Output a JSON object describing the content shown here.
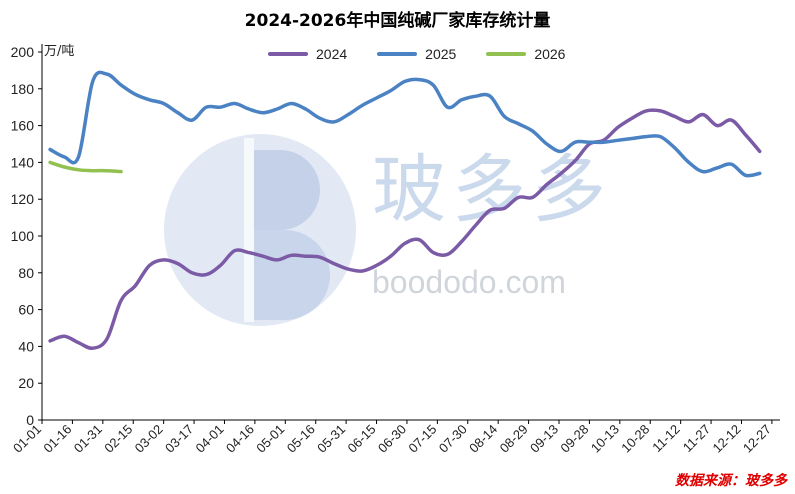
{
  "title": "2024-2026年中国纯碱厂家库存统计量",
  "unit_label": "万/吨",
  "source": "数据来源：玻多多",
  "watermark": {
    "cn": "玻多多",
    "en": "boododo.com"
  },
  "colors": {
    "s2024": "#7b5aa6",
    "s2025": "#4a82c3",
    "s2026": "#92c051",
    "axis": "#000000",
    "source": "#e00000"
  },
  "chart_data": {
    "type": "line",
    "title": "2024-2026年中国纯碱厂家库存统计量",
    "ylabel": "万/吨",
    "ylim": [
      0,
      200
    ],
    "yticks": [
      0,
      20,
      40,
      60,
      80,
      100,
      120,
      140,
      160,
      180,
      200
    ],
    "x_categories": [
      "01-01",
      "01-16",
      "01-31",
      "02-15",
      "03-02",
      "03-17",
      "04-01",
      "04-16",
      "05-01",
      "05-16",
      "05-31",
      "06-15",
      "06-30",
      "07-15",
      "07-30",
      "08-14",
      "08-29",
      "09-13",
      "09-28",
      "10-13",
      "10-28",
      "11-12",
      "11-27",
      "12-12",
      "12-27"
    ],
    "grid": false,
    "legend_position": "top-center",
    "series": [
      {
        "name": "2024",
        "x": [
          4,
          11,
          18,
          25,
          32,
          39,
          46,
          53,
          60,
          67,
          74,
          81,
          88,
          95,
          102,
          109,
          116,
          123,
          130,
          137,
          144,
          151,
          158,
          165,
          172,
          179,
          186,
          193,
          200,
          207,
          214,
          221,
          228,
          235,
          242,
          249,
          256,
          263,
          270,
          277,
          284,
          291,
          298,
          305,
          312,
          319,
          326,
          333,
          340,
          347,
          354
        ],
        "values": [
          43,
          45.5,
          42,
          39,
          44,
          65,
          73,
          84,
          87,
          85,
          80,
          79,
          84,
          92,
          91,
          89,
          87,
          89.5,
          89,
          88.5,
          85,
          82,
          81,
          84,
          89,
          96,
          98,
          91,
          90,
          97,
          106,
          114,
          115,
          121,
          121,
          128,
          134,
          141,
          150,
          152,
          159,
          164,
          168,
          168,
          165,
          162,
          166,
          160,
          163,
          155,
          146
        ]
      },
      {
        "name": "2025",
        "x": [
          4,
          11,
          18,
          25,
          32,
          39,
          46,
          53,
          60,
          67,
          74,
          81,
          88,
          95,
          102,
          109,
          116,
          123,
          130,
          137,
          144,
          151,
          158,
          165,
          172,
          179,
          186,
          193,
          200,
          207,
          214,
          221,
          228,
          235,
          242,
          249,
          256,
          263,
          270,
          277,
          284,
          291,
          298,
          305,
          312,
          319,
          326,
          333,
          340,
          347,
          354
        ],
        "values": [
          147,
          143,
          143,
          184,
          188,
          182,
          177,
          174,
          172,
          167,
          163,
          170,
          170,
          172,
          169,
          167,
          169,
          172,
          169,
          164,
          162,
          166,
          171,
          175,
          179,
          184,
          185,
          182,
          170,
          174,
          176,
          176,
          165,
          161,
          157,
          150,
          146,
          151,
          151,
          151,
          152,
          153,
          154,
          154,
          148,
          140,
          135,
          137,
          139,
          133,
          134
        ]
      },
      {
        "name": "2026",
        "x": [
          4,
          11,
          18,
          25,
          32,
          39
        ],
        "values": [
          140,
          137.5,
          136,
          135.5,
          135.5,
          135
        ]
      }
    ]
  }
}
